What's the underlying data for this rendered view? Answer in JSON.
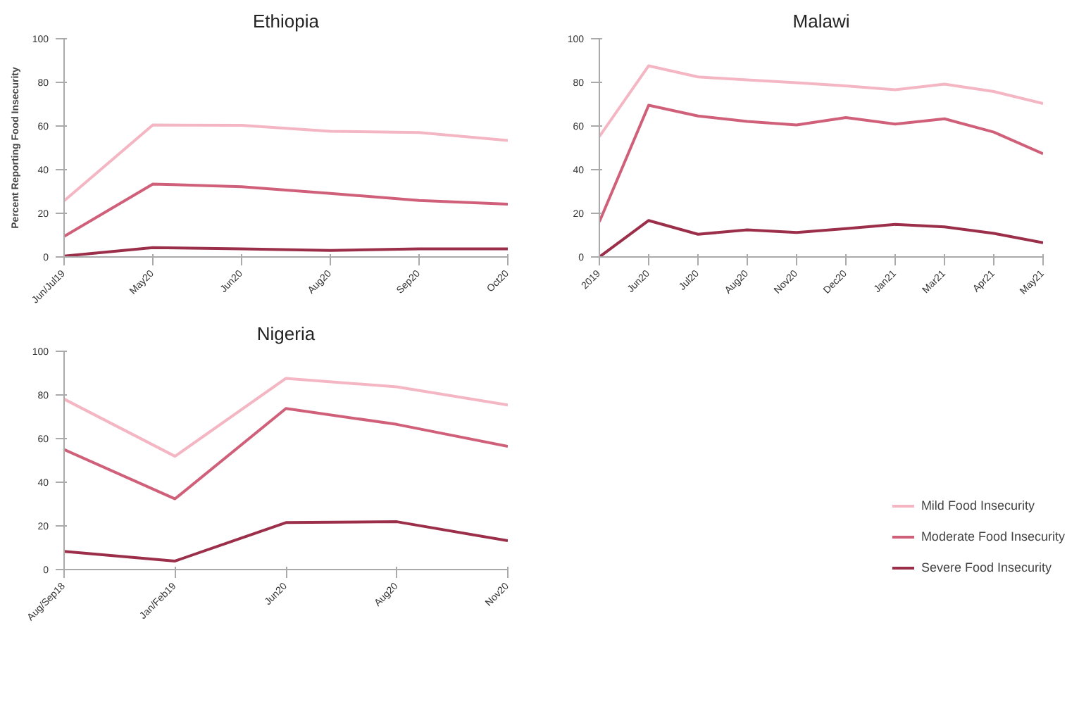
{
  "chart_data": [
    {
      "type": "line",
      "title": "Ethiopia",
      "ylabel": "Percent Reporting Food Insecurity",
      "categories": [
        "Jun/Jul19",
        "May20",
        "Jun20",
        "Aug20",
        "Sep20",
        "Oct20"
      ],
      "ylim": [
        0,
        100
      ],
      "yticks": [
        0,
        20,
        40,
        60,
        80,
        100
      ],
      "grid": false,
      "legend": false,
      "series": [
        {
          "color": "#f4b6c2",
          "values": [
            25.7,
            60.5,
            60.3,
            57.6,
            57,
            53.4
          ]
        },
        {
          "color": "#d0607a",
          "values": [
            9.4,
            33.4,
            32.2,
            29.1,
            25.9,
            24.2
          ]
        },
        {
          "color": "#9b2f4a",
          "values": [
            0.4,
            4.3,
            3.7,
            3,
            3.7,
            3.7
          ]
        }
      ]
    },
    {
      "type": "line",
      "title": "Malawi",
      "categories": [
        "2019",
        "Jun20",
        "Jul20",
        "Aug20",
        "Nov20",
        "Dec20",
        "Jan21",
        "Mar21",
        "Apr21",
        "May21"
      ],
      "ylim": [
        0,
        100
      ],
      "yticks": [
        0,
        20,
        40,
        60,
        80,
        100
      ],
      "grid": false,
      "legend": false,
      "series": [
        {
          "color": "#f4b6c2",
          "values": [
            55.2,
            87.6,
            82.5,
            81.1,
            79.8,
            78.4,
            76.6,
            79.2,
            75.8,
            70.3
          ]
        },
        {
          "color": "#d0607a",
          "values": [
            16.1,
            69.5,
            64.6,
            62.1,
            60.5,
            63.9,
            60.9,
            63.3,
            57.2,
            47.3
          ]
        },
        {
          "color": "#9b2f4a",
          "values": [
            0,
            16.7,
            10.4,
            12.4,
            11.2,
            13,
            14.9,
            13.8,
            10.8,
            6.5
          ]
        }
      ]
    },
    {
      "type": "line",
      "title": "Nigeria",
      "categories": [
        "Aug/Sep18",
        "Jan/Feb19",
        "Jun20",
        "Aug20",
        "Nov20"
      ],
      "ylim": [
        0,
        100
      ],
      "yticks": [
        0,
        20,
        40,
        60,
        80,
        100
      ],
      "grid": false,
      "legend": "bottom right",
      "series": [
        {
          "name": "Mild Food Insecurity",
          "color": "#f4b6c2",
          "values": [
            78.1,
            51.9,
            87.6,
            83.7,
            75.4
          ]
        },
        {
          "name": "Moderate Food Insecurity",
          "color": "#d0607a",
          "values": [
            55,
            32.4,
            73.8,
            66.5,
            56.4
          ]
        },
        {
          "name": "Severe Food Insecurity",
          "color": "#9b2f4a",
          "values": [
            8.3,
            3.9,
            21.5,
            21.9,
            13.2
          ]
        }
      ]
    }
  ]
}
